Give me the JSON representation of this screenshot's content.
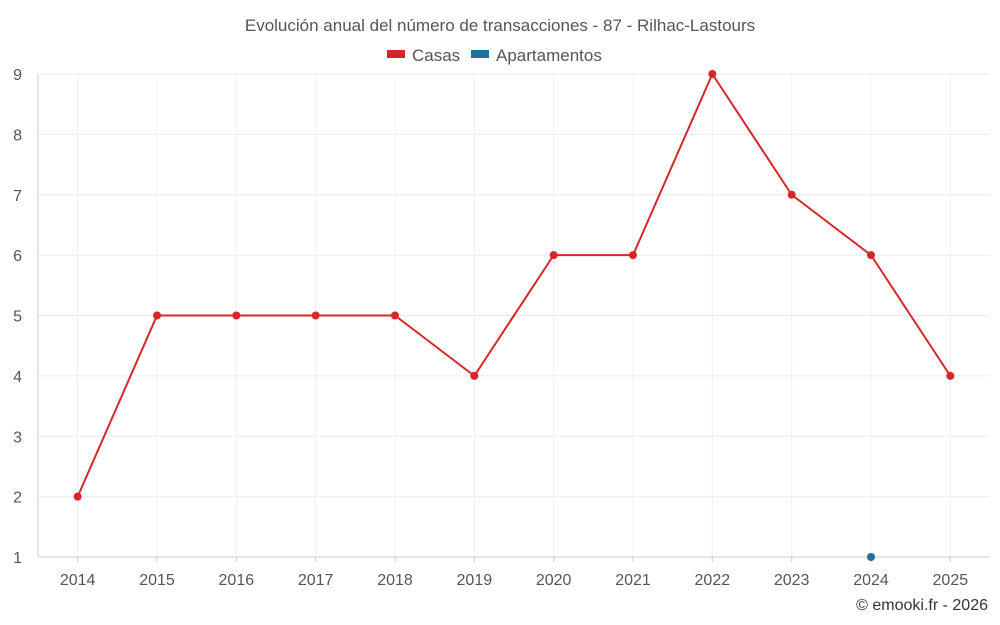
{
  "chart_data": {
    "type": "line",
    "title": "Evolución anual del número de transacciones - 87 - Rilhac-Lastours",
    "categories": [
      "2014",
      "2015",
      "2016",
      "2017",
      "2018",
      "2019",
      "2020",
      "2021",
      "2022",
      "2023",
      "2024",
      "2025"
    ],
    "series": [
      {
        "name": "Casas",
        "color": "#d62728",
        "values": [
          2,
          5,
          5,
          5,
          5,
          4,
          6,
          6,
          9,
          7,
          6,
          4
        ]
      },
      {
        "name": "Apartamentos",
        "color": "#1f6f9f",
        "values": [
          null,
          null,
          null,
          null,
          null,
          null,
          null,
          null,
          null,
          null,
          1,
          null
        ]
      }
    ],
    "yticks": [
      "1",
      "2",
      "3",
      "4",
      "5",
      "6",
      "7",
      "8",
      "9"
    ],
    "ylim": [
      1,
      9
    ],
    "xlabel": "",
    "ylabel": "",
    "grid": true,
    "legend_position": "top-center"
  },
  "credit": "© emooki.fr - 2026"
}
